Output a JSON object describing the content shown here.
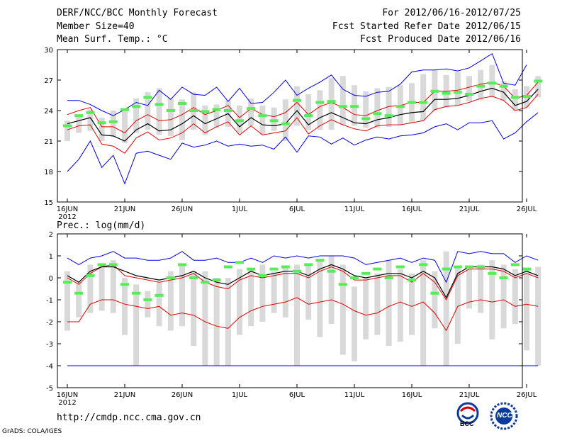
{
  "header": {
    "title": "DERF/NCC/BCC Monthly Forecast",
    "member_size": "Member Size=40",
    "variable": "Mean Surf. Temp.: °C",
    "period": "For 2012/06/16-2012/07/25",
    "refer_date": "Fcst Started Refer Date 2012/06/15",
    "produced_date": "Fcst Produced Date 2012/06/16"
  },
  "footer": {
    "url": "http://cmdp.ncc.cma.gov.cn",
    "credit": "GrADS: COLA/IGES",
    "logo1_text": "BCC",
    "logo2_text": "NCC"
  },
  "colors": {
    "box": "#d9d9d9",
    "green": "#55ee55",
    "red": "#e00000",
    "blue": "#0000e0",
    "black": "#000000",
    "frame": "#000000"
  },
  "chart_data": [
    {
      "type": "line",
      "title": "",
      "ylabel": "Mean Surf. Temp.: °C",
      "ylim": [
        15,
        30
      ],
      "yticks": [
        "15",
        "18",
        "21",
        "24",
        "27",
        "30"
      ],
      "xticks": [
        {
          "day": 1,
          "label": "16JUN",
          "sub": "2012"
        },
        {
          "day": 6,
          "label": "21JUN"
        },
        {
          "day": 11,
          "label": "26JUN"
        },
        {
          "day": 16,
          "label": "1JUL"
        },
        {
          "day": 21,
          "label": "6JUL"
        },
        {
          "day": 26,
          "label": "11JUL"
        },
        {
          "day": 31,
          "label": "16JUL"
        },
        {
          "day": 36,
          "label": "21JUL"
        },
        {
          "day": 41,
          "label": "26JUL"
        }
      ],
      "ensemble_mean": [
        22.7,
        23.0,
        23.3,
        21.6,
        21.5,
        21.0,
        22.1,
        22.7,
        22.0,
        22.1,
        22.7,
        23.5,
        22.7,
        23.2,
        23.7,
        22.4,
        23.3,
        22.6,
        22.5,
        22.7,
        24.0,
        22.6,
        23.3,
        23.8,
        23.3,
        22.8,
        22.7,
        23.1,
        23.3,
        23.6,
        23.8,
        23.9,
        25.1,
        25.1,
        25.2,
        25.5,
        25.9,
        26.2,
        25.8,
        24.5,
        24.9,
        26.1
      ],
      "upper_red": [
        23.6,
        24.0,
        24.3,
        22.4,
        22.4,
        21.8,
        23.0,
        23.6,
        23.0,
        23.1,
        23.6,
        24.3,
        23.6,
        24.0,
        24.5,
        23.3,
        24.2,
        23.6,
        23.4,
        23.8,
        24.8,
        23.6,
        24.4,
        24.8,
        24.3,
        23.6,
        23.5,
        24.0,
        24.4,
        24.5,
        24.8,
        24.8,
        25.9,
        25.9,
        26.0,
        26.3,
        26.6,
        26.8,
        26.4,
        25.2,
        25.5,
        26.8
      ],
      "lower_red": [
        22.1,
        22.5,
        22.6,
        20.7,
        20.5,
        19.8,
        21.3,
        21.9,
        21.1,
        21.3,
        21.8,
        22.7,
        21.8,
        22.4,
        22.9,
        21.6,
        22.5,
        21.6,
        21.8,
        22.0,
        23.3,
        21.7,
        22.5,
        23.1,
        22.6,
        22.2,
        22.0,
        22.5,
        22.6,
        22.6,
        22.8,
        23.0,
        24.1,
        24.4,
        24.5,
        24.8,
        25.2,
        25.4,
        25.0,
        24.0,
        24.3,
        25.6
      ],
      "upper_blue": [
        25.0,
        25.0,
        24.6,
        24.0,
        23.5,
        24.1,
        24.8,
        24.5,
        26.0,
        25.1,
        26.3,
        25.6,
        25.5,
        26.3,
        24.9,
        26.2,
        24.7,
        24.8,
        25.8,
        27.0,
        25.5,
        26.2,
        26.8,
        27.5,
        26.1,
        25.5,
        25.4,
        25.8,
        25.9,
        26.6,
        27.8,
        28.0,
        28.0,
        28.1,
        27.9,
        28.2,
        28.9,
        29.6,
        26.7,
        26.5,
        28.5,
        null
      ],
      "lower_blue": [
        18.0,
        19.2,
        21.0,
        18.4,
        19.6,
        16.8,
        19.8,
        20.0,
        19.6,
        19.2,
        20.8,
        20.4,
        20.6,
        21.0,
        20.5,
        20.7,
        20.5,
        20.6,
        20.2,
        21.4,
        19.9,
        21.5,
        21.4,
        20.7,
        21.3,
        20.6,
        21.1,
        21.4,
        21.2,
        21.5,
        21.6,
        21.8,
        22.4,
        22.7,
        22.1,
        22.8,
        22.8,
        23.0,
        21.2,
        21.8,
        22.9,
        23.8
      ],
      "box_low": [
        21.0,
        21.8,
        22.0,
        21.0,
        21.4,
        20.8,
        21.8,
        22.1,
        21.6,
        21.5,
        21.1,
        22.1,
        21.6,
        22.3,
        22.4,
        21.8,
        22.5,
        21.6,
        22.0,
        21.0,
        22.5,
        22.1,
        22.1,
        22.1,
        22.6,
        22.5,
        22.3,
        22.3,
        22.4,
        22.6,
        22.8,
        23.0,
        24.0,
        24.3,
        24.5,
        24.9,
        25.0,
        25.3,
        25.0,
        24.0,
        24.3,
        25.3
      ],
      "box_high": [
        23.0,
        23.5,
        24.1,
        23.3,
        24.0,
        24.2,
        25.2,
        25.8,
        26.2,
        25.2,
        25.1,
        25.8,
        24.5,
        24.6,
        25.0,
        24.5,
        25.2,
        24.5,
        24.3,
        25.1,
        26.4,
        25.6,
        26.0,
        27.2,
        27.4,
        26.5,
        25.9,
        26.2,
        26.3,
        26.5,
        26.7,
        27.6,
        28.0,
        27.5,
        27.8,
        27.4,
        28.0,
        28.5,
        26.9,
        26.1,
        26.4,
        27.4
      ],
      "obs_green": [
        22.5,
        23.5,
        23.8,
        22.8,
        22.9,
        24.1,
        24.4,
        25.3,
        24.6,
        24.0,
        24.7,
        24.0,
        23.9,
        24.1,
        24.0,
        23.0,
        24.2,
        23.5,
        23.0,
        22.7,
        25.0,
        23.5,
        24.8,
        24.9,
        24.4,
        24.4,
        23.2,
        23.7,
        23.5,
        24.4,
        24.8,
        24.8,
        25.9,
        25.7,
        25.8,
        25.6,
        26.4,
        26.7,
        26.4,
        25.3,
        25.4,
        26.9
      ]
    },
    {
      "type": "line",
      "title": "",
      "ylabel": "Prec.: log(mm/d)",
      "ylim": [
        -5,
        2
      ],
      "yticks": [
        "-5",
        "-4",
        "-3",
        "-2",
        "-1",
        "0",
        "1",
        "2"
      ],
      "xticks": [
        {
          "day": 1,
          "label": "16JUN",
          "sub": "2012"
        },
        {
          "day": 6,
          "label": "21JUN"
        },
        {
          "day": 11,
          "label": "26JUN"
        },
        {
          "day": 16,
          "label": "1JUL"
        },
        {
          "day": 21,
          "label": "6JUL"
        },
        {
          "day": 26,
          "label": "11JUL"
        },
        {
          "day": 31,
          "label": "16JUL"
        },
        {
          "day": 36,
          "label": "21JUL"
        },
        {
          "day": 41,
          "label": "26JUL"
        }
      ],
      "ensemble_mean": [
        0.1,
        -0.2,
        0.3,
        0.5,
        0.5,
        0.3,
        0.1,
        0.0,
        -0.1,
        0.0,
        0.1,
        0.3,
        0.0,
        -0.2,
        -0.3,
        0.0,
        0.3,
        0.1,
        0.2,
        0.3,
        0.3,
        0.1,
        0.4,
        0.6,
        0.4,
        0.1,
        0.0,
        0.1,
        0.2,
        0.2,
        0.0,
        0.3,
        0.0,
        -0.9,
        0.2,
        0.5,
        0.5,
        0.5,
        0.4,
        0.1,
        0.3,
        0.1
      ],
      "upper_red": [
        0.0,
        -0.3,
        0.2,
        0.5,
        0.6,
        0.1,
        0.0,
        -0.1,
        -0.2,
        -0.1,
        0.0,
        0.2,
        -0.2,
        -0.4,
        -0.5,
        -0.1,
        0.1,
        0.0,
        0.1,
        0.2,
        0.2,
        0.0,
        0.3,
        0.5,
        0.3,
        -0.1,
        -0.1,
        0.0,
        0.1,
        0.1,
        -0.2,
        0.2,
        -0.2,
        -1.0,
        0.1,
        0.4,
        0.4,
        0.4,
        0.3,
        0.0,
        0.2,
        0.0
      ],
      "lower_red": [
        -2.0,
        -2.0,
        -1.2,
        -1.0,
        -1.0,
        -1.2,
        -1.3,
        -1.4,
        -1.3,
        -1.7,
        -1.6,
        -1.7,
        -2.0,
        -2.2,
        -2.3,
        -1.8,
        -1.5,
        -1.3,
        -1.2,
        -1.1,
        -0.9,
        -1.2,
        -1.1,
        -1.0,
        -1.2,
        -1.5,
        -1.7,
        -1.6,
        -1.3,
        -1.1,
        -1.3,
        -1.1,
        -1.6,
        -2.4,
        -1.3,
        -1.1,
        -1.0,
        -1.1,
        -1.0,
        -1.3,
        -1.2,
        -1.3
      ],
      "upper_blue": [
        0.9,
        0.6,
        0.9,
        1.0,
        1.2,
        0.9,
        0.9,
        0.8,
        0.8,
        0.9,
        1.2,
        0.8,
        0.8,
        0.9,
        0.7,
        0.7,
        0.9,
        0.7,
        1.0,
        0.9,
        1.0,
        0.9,
        1.0,
        1.0,
        1.0,
        0.9,
        0.6,
        0.7,
        0.8,
        0.9,
        0.7,
        0.9,
        0.8,
        -0.2,
        1.2,
        1.1,
        1.2,
        1.1,
        1.1,
        0.7,
        1.0,
        0.8
      ],
      "lower_blue": [
        -4.0,
        -4.0,
        -4.0,
        -4.0,
        -4.0,
        -4.0,
        -4.0,
        -4.0,
        -4.0,
        -4.0,
        -4.0,
        -4.0,
        -4.0,
        -4.0,
        -4.0,
        -4.0,
        -4.0,
        -4.0,
        -4.0,
        -4.0,
        -4.0,
        -4.0,
        -4.0,
        -4.0,
        -4.0,
        -4.0,
        -4.0,
        -4.0,
        -4.0,
        -4.0,
        -4.0,
        -4.0,
        -4.0,
        -4.0,
        -4.0,
        -4.0,
        -4.0,
        -4.0,
        -4.0,
        -4.0,
        -4.0,
        -4.0
      ],
      "box_low": [
        -2.4,
        -1.8,
        -1.6,
        -1.5,
        -1.6,
        -2.6,
        -4.0,
        -1.8,
        -2.2,
        -2.4,
        -2.2,
        -3.1,
        -4.0,
        -4.0,
        -4.0,
        -2.6,
        -2.2,
        -2.0,
        -1.6,
        -1.8,
        -4.0,
        -1.9,
        -2.7,
        -2.1,
        -3.5,
        -3.8,
        -2.8,
        -2.6,
        -3.1,
        -2.9,
        -2.6,
        -4.0,
        -2.3,
        -4.0,
        -3.0,
        -1.4,
        -1.6,
        -2.8,
        -2.3,
        -2.1,
        -3.3,
        -4.0
      ],
      "box_high": [
        0.3,
        -0.2,
        0.6,
        0.6,
        0.8,
        0.0,
        -0.3,
        -0.6,
        -0.2,
        0.3,
        0.6,
        0.3,
        0.3,
        0.0,
        0.0,
        0.4,
        0.4,
        0.6,
        0.3,
        0.5,
        0.6,
        0.6,
        0.8,
        1.0,
        0.6,
        -0.4,
        0.0,
        0.2,
        0.8,
        0.4,
        0.2,
        0.8,
        0.3,
        1.2,
        0.5,
        0.4,
        0.6,
        0.8,
        0.6,
        0.4,
        0.4,
        0.5
      ],
      "obs_green": [
        -0.2,
        -0.7,
        0.1,
        0.6,
        0.6,
        -0.3,
        -0.7,
        -1.0,
        -0.8,
        0.0,
        0.6,
        0.0,
        -0.2,
        -0.1,
        0.5,
        0.7,
        0.4,
        0.1,
        0.4,
        0.5,
        0.3,
        0.6,
        0.8,
        0.3,
        -0.3,
        0.0,
        0.2,
        0.4,
        0.0,
        0.5,
        -0.1,
        0.6,
        -0.7,
        0.4,
        0.5,
        0.5,
        0.5,
        0.2,
        0.0,
        0.6,
        0.4,
        null
      ]
    }
  ]
}
